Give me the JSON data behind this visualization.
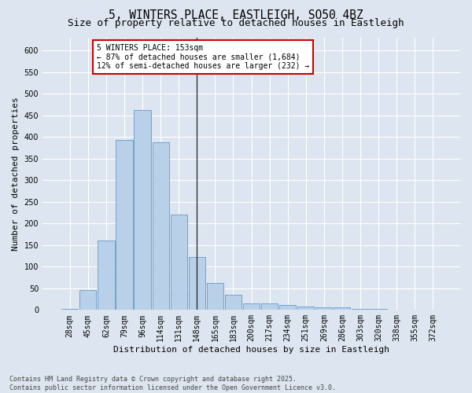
{
  "title": "5, WINTERS PLACE, EASTLEIGH, SO50 4BZ",
  "subtitle": "Size of property relative to detached houses in Eastleigh",
  "xlabel": "Distribution of detached houses by size in Eastleigh",
  "ylabel": "Number of detached properties",
  "categories": [
    "28sqm",
    "45sqm",
    "62sqm",
    "79sqm",
    "96sqm",
    "114sqm",
    "131sqm",
    "148sqm",
    "165sqm",
    "183sqm",
    "200sqm",
    "217sqm",
    "234sqm",
    "251sqm",
    "269sqm",
    "286sqm",
    "303sqm",
    "320sqm",
    "338sqm",
    "355sqm",
    "372sqm"
  ],
  "values": [
    3,
    46,
    160,
    393,
    462,
    388,
    220,
    122,
    62,
    35,
    15,
    15,
    11,
    7,
    6,
    6,
    2,
    2,
    1,
    0,
    0
  ],
  "bar_color": "#b8d0e8",
  "bar_edge_color": "#6699cc",
  "highlight_bar_index": 7,
  "highlight_line_color": "#222222",
  "ylim": [
    0,
    630
  ],
  "yticks": [
    0,
    50,
    100,
    150,
    200,
    250,
    300,
    350,
    400,
    450,
    500,
    550,
    600
  ],
  "annotation_text_line1": "5 WINTERS PLACE: 153sqm",
  "annotation_text_line2": "← 87% of detached houses are smaller (1,684)",
  "annotation_text_line3": "12% of semi-detached houses are larger (232) →",
  "annotation_box_facecolor": "#ffffff",
  "annotation_box_edgecolor": "#cc0000",
  "footer_line1": "Contains HM Land Registry data © Crown copyright and database right 2025.",
  "footer_line2": "Contains public sector information licensed under the Open Government Licence v3.0.",
  "background_color": "#dde6f0",
  "plot_background_color": "#dde6f0",
  "grid_color": "#ffffff",
  "title_fontsize": 10.5,
  "subtitle_fontsize": 9,
  "axis_label_fontsize": 8,
  "tick_fontsize": 7,
  "annotation_fontsize": 7,
  "footer_fontsize": 6
}
